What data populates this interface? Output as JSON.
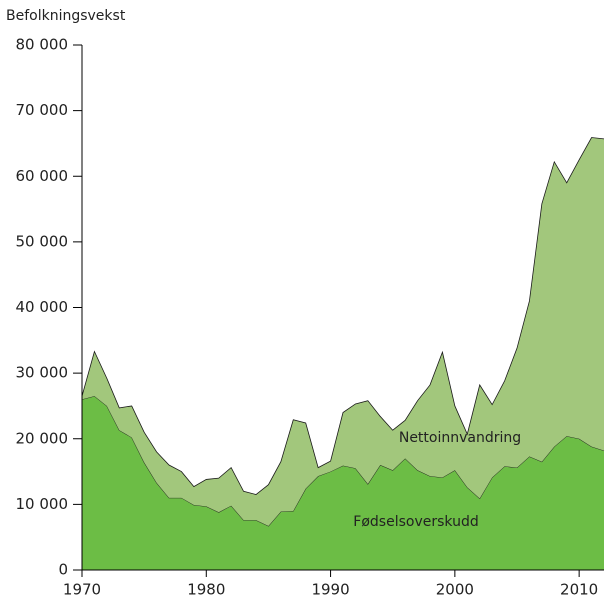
{
  "chart_data": {
    "type": "stacked_area",
    "y_axis_label": "Befolkningsvekst",
    "x": [
      1970,
      1971,
      1972,
      1973,
      1974,
      1975,
      1976,
      1977,
      1978,
      1979,
      1980,
      1981,
      1982,
      1983,
      1984,
      1985,
      1986,
      1987,
      1988,
      1989,
      1990,
      1991,
      1992,
      1993,
      1994,
      1995,
      1996,
      1997,
      1998,
      1999,
      2000,
      2001,
      2002,
      2003,
      2004,
      2005,
      2006,
      2007,
      2008,
      2009,
      2010,
      2011,
      2012
    ],
    "series": [
      {
        "name": "Fødselsoverskudd",
        "color": "#6cbd45",
        "values": [
          26000,
          26500,
          25000,
          21300,
          20200,
          16400,
          13300,
          11000,
          11000,
          9900,
          9700,
          8800,
          9800,
          7600,
          7600,
          6700,
          8900,
          9000,
          12400,
          14300,
          15000,
          15900,
          15500,
          13100,
          16000,
          15200,
          17000,
          15200,
          14300,
          14100,
          15200,
          12600,
          10900,
          14100,
          15800,
          15600,
          17300,
          16500,
          18800,
          20400,
          20000,
          18800,
          18200
        ]
      },
      {
        "name": "Nettoinnvandring",
        "color": "#a2c77c",
        "values": [
          500,
          6800,
          4200,
          3400,
          4800,
          4600,
          4700,
          5000,
          4000,
          2800,
          4100,
          5200,
          5800,
          4400,
          3900,
          6300,
          7600,
          13900,
          10000,
          1300,
          1600,
          8100,
          9800,
          12700,
          7400,
          6100,
          5800,
          10600,
          13900,
          19100,
          9800,
          8100,
          17300,
          11100,
          13000,
          18200,
          23700,
          39300,
          43400,
          38600,
          42500,
          47100,
          47500
        ]
      }
    ],
    "xlim": [
      1970,
      2012
    ],
    "xticks": [
      1970,
      1980,
      1990,
      2000,
      2010
    ],
    "ylim": [
      0,
      80000
    ],
    "yticks": [
      0,
      {
        "value": 10000,
        "label": "10 000"
      },
      {
        "value": 20000,
        "label": "20 000"
      },
      {
        "value": 30000,
        "label": "30 000"
      },
      {
        "value": 40000,
        "label": "40 000"
      },
      {
        "value": 50000,
        "label": "50 000"
      },
      {
        "value": 60000,
        "label": "60 000"
      },
      {
        "value": 70000,
        "label": "70 000"
      },
      {
        "value": 80000,
        "label": "80 000"
      }
    ]
  }
}
